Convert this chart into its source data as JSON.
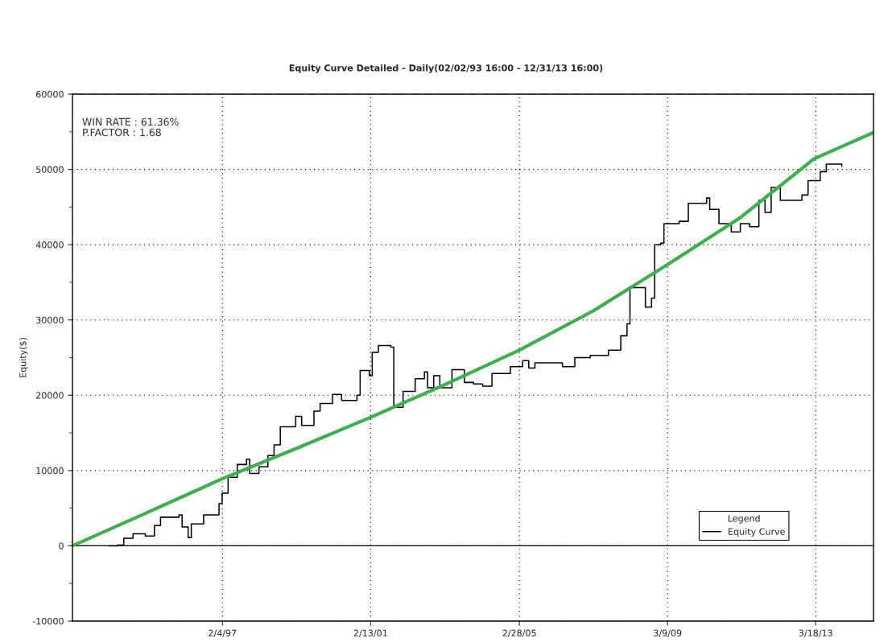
{
  "chart_data": {
    "type": "step",
    "title": "Equity Curve Detailed - Daily(02/02/93 16:00 - 12/31/13 16:00)",
    "ylabel": "Equity($)",
    "annotations": [
      "WIN RATE : 61.36%",
      "P.FACTOR : 1.68"
    ],
    "legend_title": "Legend",
    "legend": "bottom right",
    "grid": true,
    "line_style": "solid",
    "xlim": [
      "1993-01-08",
      "2014-10-12"
    ],
    "xticks": [
      {
        "value": "1997-02-04",
        "label": "2/4/97"
      },
      {
        "value": "2001-02-13",
        "label": "2/13/01"
      },
      {
        "value": "2005-02-28",
        "label": "2/28/05"
      },
      {
        "value": "2009-03-09",
        "label": "3/9/09"
      },
      {
        "value": "2013-03-18",
        "label": "3/18/13"
      }
    ],
    "ylim": [
      -10000,
      60000
    ],
    "yticks": [
      -10000,
      {
        "value": -5000,
        "label": null
      },
      0,
      {
        "value": 5000,
        "label": null
      },
      10000,
      {
        "value": 15000,
        "label": null
      },
      20000,
      {
        "value": 25000,
        "label": null
      },
      30000,
      {
        "value": 35000,
        "label": null
      },
      40000,
      {
        "value": 45000,
        "label": null
      },
      50000,
      {
        "value": 55000,
        "label": null
      },
      60000
    ],
    "ref_lines": [
      {
        "axis": "y",
        "value": 0,
        "color": "#000000",
        "line_style": "solid"
      }
    ],
    "series": [
      {
        "name": "Equity Curve",
        "color": "#000000",
        "x": [
          "1994-01",
          "1994-04",
          "1994-06",
          "1994-09",
          "1995-01",
          "1995-04",
          "1995-06",
          "1995-12",
          "1996-01",
          "1996-03",
          "1996-04",
          "1996-08",
          "1997-01",
          "1997-02",
          "1997-04",
          "1997-07",
          "1997-10",
          "1997-11",
          "1998-02",
          "1998-05",
          "1998-07",
          "1998-09",
          "1999-02",
          "1999-04",
          "1999-08",
          "1999-10",
          "2000-02",
          "2000-05",
          "2000-10",
          "2000-11",
          "2001-02",
          "2001-03",
          "2001-05",
          "2001-09",
          "2001-10",
          "2002-01",
          "2002-05",
          "2002-08",
          "2002-09",
          "2002-11",
          "2003-01",
          "2003-05",
          "2003-09",
          "2003-12",
          "2004-03",
          "2004-06",
          "2004-12",
          "2005-04",
          "2005-06",
          "2005-08",
          "2006-05",
          "2006-09",
          "2007-02",
          "2007-08",
          "2007-12",
          "2008-02",
          "2008-03",
          "2008-06",
          "2008-08",
          "2008-10",
          "2008-11",
          "2009-01",
          "2009-02",
          "2009-07",
          "2009-10",
          "2010-04",
          "2010-05",
          "2010-08",
          "2010-12",
          "2011-03",
          "2011-06",
          "2011-09",
          "2011-11",
          "2012-01",
          "2012-04",
          "2012-11",
          "2013-01",
          "2013-05",
          "2013-07",
          "2013-12"
        ],
        "values": [
          0,
          100,
          1000,
          1600,
          1300,
          2700,
          3800,
          4100,
          2500,
          1100,
          2900,
          4100,
          5600,
          7000,
          9100,
          10800,
          11500,
          9600,
          10500,
          12000,
          13400,
          15800,
          17200,
          16000,
          17900,
          18900,
          20100,
          19300,
          20000,
          23300,
          22600,
          25700,
          26600,
          26400,
          18400,
          20500,
          22200,
          23100,
          21000,
          22600,
          21000,
          23400,
          21700,
          21500,
          21200,
          22900,
          23800,
          24600,
          23600,
          24300,
          23800,
          25000,
          25300,
          26000,
          27900,
          29500,
          34300,
          34300,
          31700,
          32900,
          40000,
          40200,
          42800,
          43100,
          45500,
          46200,
          44700,
          42800,
          41700,
          42800,
          42400,
          45900,
          44300,
          47600,
          45900,
          46600,
          48500,
          49700,
          50700,
          50400
        ]
      },
      {
        "type": "line",
        "color": "#3cb04a",
        "x": [
          "1993-01-08",
          "1995-01",
          "1997-02",
          "1999-02",
          "2001-02",
          "2003-02",
          "2005-03",
          "2007-03",
          "2009-03",
          "2011-03",
          "2013-03",
          "2014-10-12"
        ],
        "values": [
          0,
          4300,
          8900,
          12900,
          17000,
          21300,
          26000,
          31200,
          37300,
          43600,
          51400,
          54900
        ]
      }
    ]
  }
}
